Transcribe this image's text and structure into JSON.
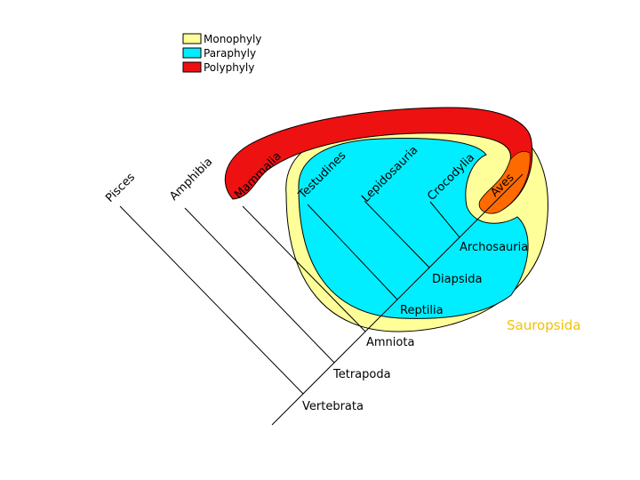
{
  "colors": {
    "monophyly": "#ffff99",
    "paraphyly": "#00eeff",
    "polyphyly": "#ee1111",
    "overlap": "#ff6a00",
    "outline": "#000000",
    "sauropsida_label": "#f2c200"
  },
  "legend": [
    {
      "label": "Monophyly",
      "color": "#ffff99"
    },
    {
      "label": "Paraphyly",
      "color": "#00eeff"
    },
    {
      "label": "Polyphyly",
      "color": "#ee1111"
    }
  ],
  "taxa": {
    "pisces": "Pisces",
    "amphibia": "Amphibia",
    "mammalia": "Mammalia",
    "testudines": "Testudines",
    "lepidosauria": "Lepidosauria",
    "crocodylia": "Crocodylia",
    "aves": "Aves"
  },
  "clades": {
    "vertebrata": "Vertebrata",
    "tetrapoda": "Tetrapoda",
    "amniota": "Amniota",
    "reptilia": "Reptilia",
    "diapsida": "Diapsida",
    "archosauria": "Archosauria"
  },
  "group_labels": {
    "sauropsida": "Sauropsida"
  }
}
